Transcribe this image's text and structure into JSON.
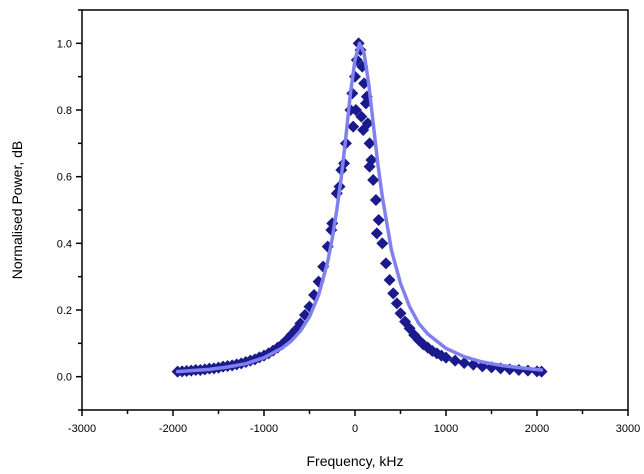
{
  "chart_data": {
    "type": "scatter",
    "title": "",
    "xlabel": "Frequency, kHz",
    "ylabel": "Normalised Power, dB",
    "xlim": [
      -3000,
      3000
    ],
    "ylim": [
      -0.1,
      1.1
    ],
    "x_ticks": [
      -3000,
      -2000,
      -1000,
      0,
      1000,
      2000,
      3000
    ],
    "x_tick_labels": [
      "-3000",
      "-2000",
      "-1000",
      "0",
      "1000",
      "2000",
      "3000"
    ],
    "y_ticks": [
      0.0,
      0.2,
      0.4,
      0.6,
      0.8,
      1.0
    ],
    "y_tick_labels": [
      "0.0",
      "0.2",
      "0.4",
      "0.6",
      "0.8",
      "1.0"
    ],
    "grid": false,
    "legend": "none",
    "series": [
      {
        "kind": "scatter",
        "marker": "diamond",
        "color": "#1a1a8c",
        "points": [
          [
            -1950,
            0.015
          ],
          [
            -1900,
            0.016
          ],
          [
            -1850,
            0.017
          ],
          [
            -1800,
            0.018
          ],
          [
            -1750,
            0.02
          ],
          [
            -1700,
            0.02
          ],
          [
            -1650,
            0.022
          ],
          [
            -1600,
            0.024
          ],
          [
            -1550,
            0.025
          ],
          [
            -1500,
            0.027
          ],
          [
            -1450,
            0.03
          ],
          [
            -1400,
            0.032
          ],
          [
            -1350,
            0.034
          ],
          [
            -1300,
            0.037
          ],
          [
            -1250,
            0.04
          ],
          [
            -1200,
            0.044
          ],
          [
            -1150,
            0.048
          ],
          [
            -1100,
            0.052
          ],
          [
            -1050,
            0.058
          ],
          [
            -1000,
            0.063
          ],
          [
            -950,
            0.07
          ],
          [
            -900,
            0.078
          ],
          [
            -850,
            0.087
          ],
          [
            -800,
            0.097
          ],
          [
            -750,
            0.11
          ],
          [
            -700,
            0.125
          ],
          [
            -650,
            0.14
          ],
          [
            -600,
            0.16
          ],
          [
            -550,
            0.185
          ],
          [
            -500,
            0.21
          ],
          [
            -450,
            0.245
          ],
          [
            -400,
            0.285
          ],
          [
            -350,
            0.33
          ],
          [
            -300,
            0.39
          ],
          [
            -250,
            0.46
          ],
          [
            -200,
            0.55
          ],
          [
            -150,
            0.62
          ],
          [
            -100,
            0.7
          ],
          [
            -50,
            0.8
          ],
          [
            -30,
            0.85
          ],
          [
            0,
            0.9
          ],
          [
            20,
            0.95
          ],
          [
            40,
            1.0
          ],
          [
            60,
            0.98
          ],
          [
            80,
            0.93
          ],
          [
            100,
            0.88
          ],
          [
            120,
            0.82
          ],
          [
            140,
            0.76
          ],
          [
            160,
            0.7
          ],
          [
            180,
            0.65
          ],
          [
            200,
            0.59
          ],
          [
            230,
            0.53
          ],
          [
            260,
            0.47
          ],
          [
            300,
            0.4
          ],
          [
            340,
            0.34
          ],
          [
            380,
            0.29
          ],
          [
            420,
            0.25
          ],
          [
            460,
            0.22
          ],
          [
            500,
            0.19
          ],
          [
            550,
            0.165
          ],
          [
            600,
            0.145
          ],
          [
            650,
            0.125
          ],
          [
            700,
            0.11
          ],
          [
            750,
            0.097
          ],
          [
            800,
            0.087
          ],
          [
            850,
            0.077
          ],
          [
            900,
            0.07
          ],
          [
            950,
            0.063
          ],
          [
            1000,
            0.057
          ],
          [
            1100,
            0.048
          ],
          [
            1200,
            0.041
          ],
          [
            1300,
            0.036
          ],
          [
            1400,
            0.031
          ],
          [
            1500,
            0.028
          ],
          [
            1600,
            0.025
          ],
          [
            1700,
            0.022
          ],
          [
            1800,
            0.02
          ],
          [
            1900,
            0.018
          ],
          [
            2000,
            0.016
          ],
          [
            2050,
            0.015
          ],
          [
            -20,
            0.75
          ],
          [
            10,
            0.8
          ],
          [
            70,
            0.78
          ],
          [
            90,
            0.74
          ],
          [
            130,
            0.84
          ],
          [
            -120,
            0.64
          ],
          [
            160,
            0.63
          ],
          [
            -170,
            0.57
          ],
          [
            240,
            0.43
          ],
          [
            -260,
            0.44
          ]
        ]
      },
      {
        "kind": "line",
        "color": "#8080ee",
        "x": [
          -1950,
          -1800,
          -1600,
          -1400,
          -1200,
          -1000,
          -800,
          -700,
          -600,
          -500,
          -400,
          -300,
          -250,
          -200,
          -150,
          -100,
          -50,
          0,
          50,
          100,
          150,
          200,
          250,
          300,
          400,
          500,
          600,
          700,
          800,
          1000,
          1200,
          1400,
          1600,
          1800,
          2050
        ],
        "y": [
          0.015,
          0.018,
          0.022,
          0.029,
          0.039,
          0.057,
          0.086,
          0.107,
          0.137,
          0.18,
          0.245,
          0.345,
          0.415,
          0.5,
          0.6,
          0.72,
          0.85,
          0.95,
          1.0,
          0.97,
          0.88,
          0.76,
          0.64,
          0.54,
          0.38,
          0.28,
          0.21,
          0.16,
          0.128,
          0.085,
          0.06,
          0.044,
          0.034,
          0.027,
          0.02
        ]
      }
    ]
  }
}
